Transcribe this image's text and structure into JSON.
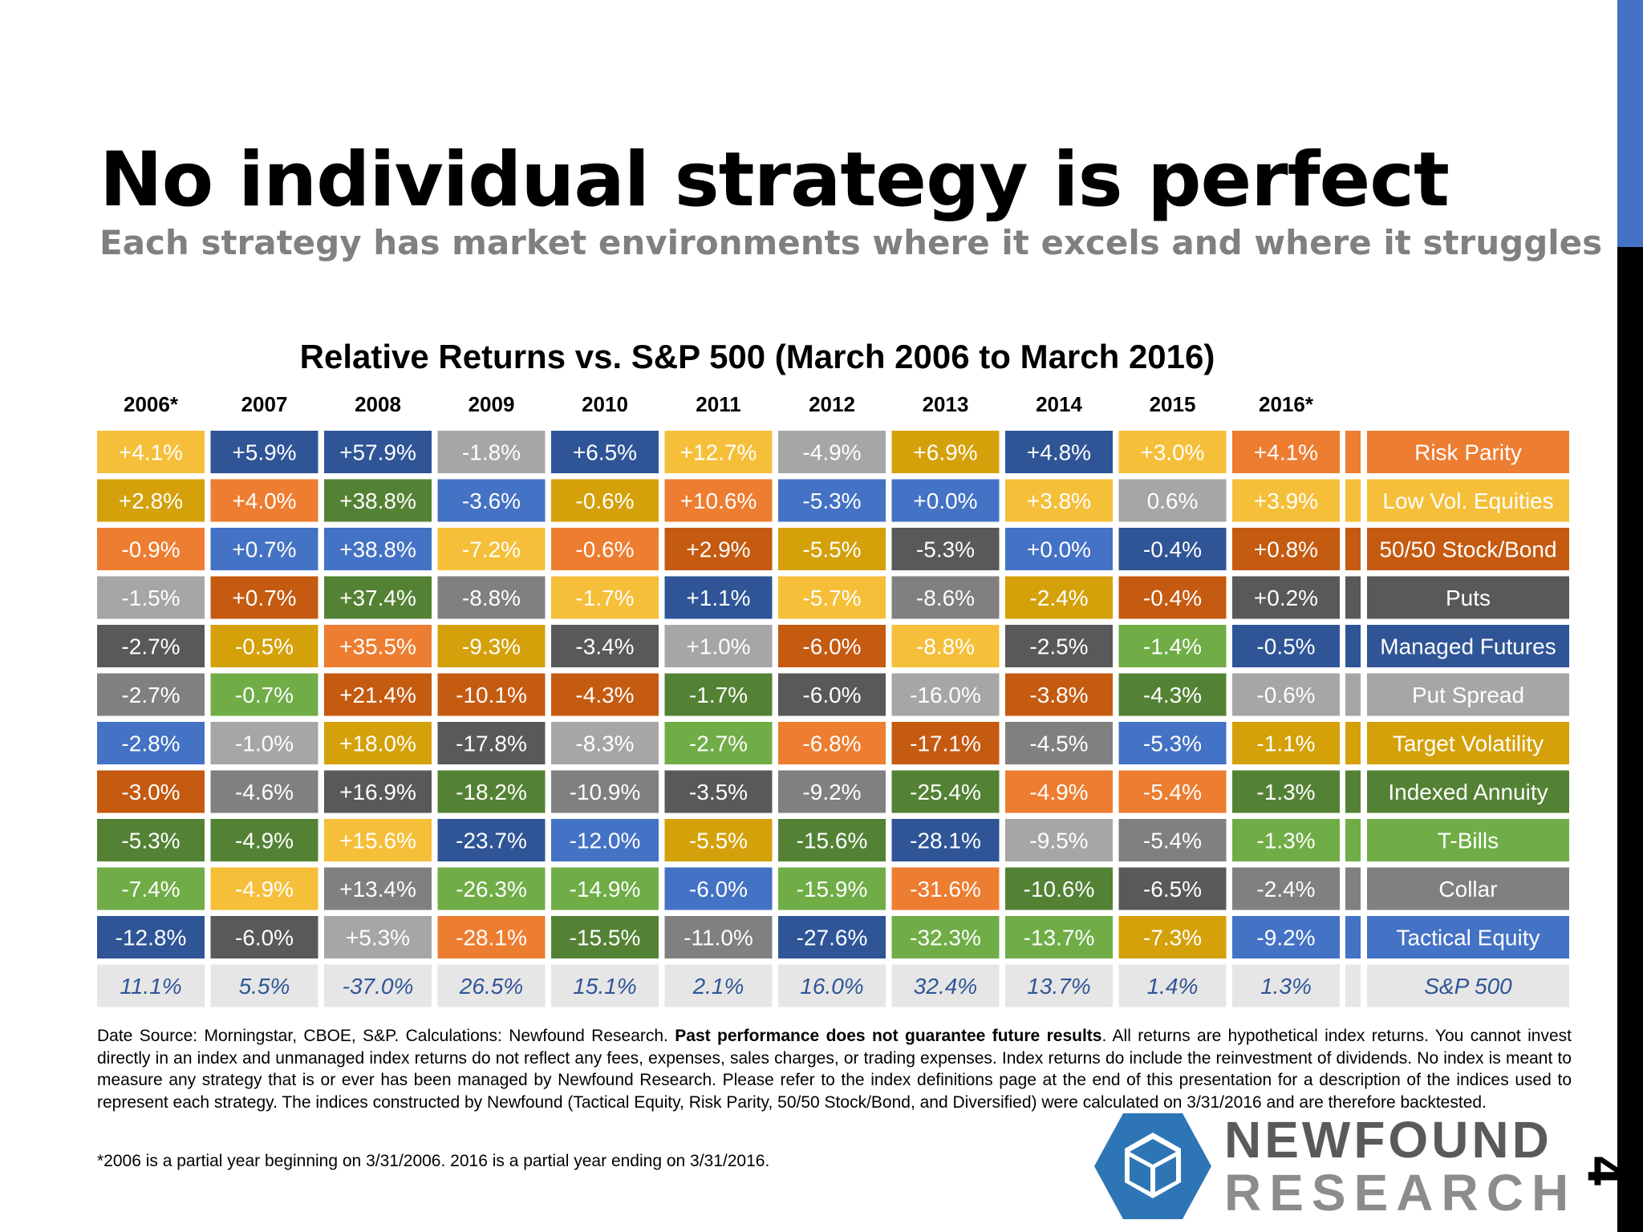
{
  "title": "No individual strategy is perfect",
  "subtitle": "Each strategy has market environments where it excels and where it struggles",
  "page_number": "4",
  "footnote": {
    "part1": "Date Source: Morningstar, CBOE, S&P. Calculations: Newfound Research. ",
    "bold": "Past performance does not guarantee future results",
    "part2": ". All returns are hypothetical index returns. You cannot invest directly in an index and unmanaged index returns do not reflect any fees, expenses, sales charges, or trading expenses.  Index returns do include the reinvestment of dividends. No index is meant to measure any strategy that is or ever has been managed by Newfound Research. Please refer to the index definitions page at the end of this presentation for a description of the indices used to represent each strategy. The indices constructed by Newfound (Tactical Equity, Risk Parity, 50/50 Stock/Bond, and Diversified) were calculated on 3/31/2016 and are therefore backtested.",
    "partial_year_note": "*2006 is a partial year beginning on 3/31/2006. 2016 is a partial year ending on 3/31/2016."
  },
  "logo": {
    "line1": "NEWFOUND",
    "line2": "RESEARCH"
  },
  "colors": {
    "Risk Parity": "#ed7d31",
    "Low Vol. Equities": "#f5bf3a",
    "50/50 Stock/Bond": "#c55a11",
    "Puts": "#595959",
    "Managed Futures": "#2f5597",
    "Put Spread": "#a6a6a6",
    "Target Volatility": "#d4a10a",
    "Indexed Annuity": "#548235",
    "T-Bills": "#70ad47",
    "Collar": "#808080",
    "Tactical Equity": "#4472c4",
    "S&P 500": "#e6e6e6",
    "sp500_text": "#2f5597"
  },
  "chart_data": {
    "type": "table",
    "title": "Relative Returns vs. S&P 500 (March 2006 to March 2016)",
    "years": [
      "2006*",
      "2007",
      "2008",
      "2009",
      "2010",
      "2011",
      "2012",
      "2013",
      "2014",
      "2015",
      "2016*"
    ],
    "legend": [
      "Risk Parity",
      "Low Vol. Equities",
      "50/50 Stock/Bond",
      "Puts",
      "Managed Futures",
      "Put Spread",
      "Target Volatility",
      "Indexed Annuity",
      "T-Bills",
      "Collar",
      "Tactical Equity"
    ],
    "columns": [
      [
        [
          "Low Vol. Equities",
          "+4.1%"
        ],
        [
          "Target Volatility",
          "+2.8%"
        ],
        [
          "Risk Parity",
          "-0.9%"
        ],
        [
          "Put Spread",
          "-1.5%"
        ],
        [
          "Puts",
          "-2.7%"
        ],
        [
          "Collar",
          "-2.7%"
        ],
        [
          "Tactical Equity",
          "-2.8%"
        ],
        [
          "50/50 Stock/Bond",
          "-3.0%"
        ],
        [
          "Indexed Annuity",
          "-5.3%"
        ],
        [
          "T-Bills",
          "-7.4%"
        ],
        [
          "Managed Futures",
          "-12.8%"
        ]
      ],
      [
        [
          "Managed Futures",
          "+5.9%"
        ],
        [
          "Risk Parity",
          "+4.0%"
        ],
        [
          "Tactical Equity",
          "+0.7%"
        ],
        [
          "50/50 Stock/Bond",
          "+0.7%"
        ],
        [
          "Target Volatility",
          "-0.5%"
        ],
        [
          "T-Bills",
          "-0.7%"
        ],
        [
          "Put Spread",
          "-1.0%"
        ],
        [
          "Collar",
          "-4.6%"
        ],
        [
          "Indexed Annuity",
          "-4.9%"
        ],
        [
          "Low Vol. Equities",
          "-4.9%"
        ],
        [
          "Puts",
          "-6.0%"
        ]
      ],
      [
        [
          "Managed Futures",
          "+57.9%"
        ],
        [
          "Indexed Annuity",
          "+38.8%"
        ],
        [
          "Tactical Equity",
          "+38.8%"
        ],
        [
          "Indexed Annuity",
          "+37.4%"
        ],
        [
          "Risk Parity",
          "+35.5%"
        ],
        [
          "50/50 Stock/Bond",
          "+21.4%"
        ],
        [
          "Target Volatility",
          "+18.0%"
        ],
        [
          "Puts",
          "+16.9%"
        ],
        [
          "Low Vol. Equities",
          "+15.6%"
        ],
        [
          "Collar",
          "+13.4%"
        ],
        [
          "Put Spread",
          "+5.3%"
        ]
      ],
      [
        [
          "Put Spread",
          "-1.8%"
        ],
        [
          "Tactical Equity",
          "-3.6%"
        ],
        [
          "Low Vol. Equities",
          "-7.2%"
        ],
        [
          "Collar",
          "-8.8%"
        ],
        [
          "Target Volatility",
          "-9.3%"
        ],
        [
          "50/50 Stock/Bond",
          "-10.1%"
        ],
        [
          "Puts",
          "-17.8%"
        ],
        [
          "Indexed Annuity",
          "-18.2%"
        ],
        [
          "Managed Futures",
          "-23.7%"
        ],
        [
          "T-Bills",
          "-26.3%"
        ],
        [
          "Risk Parity",
          "-28.1%"
        ]
      ],
      [
        [
          "Managed Futures",
          "+6.5%"
        ],
        [
          "Target Volatility",
          "-0.6%"
        ],
        [
          "Risk Parity",
          "-0.6%"
        ],
        [
          "Low Vol. Equities",
          "-1.7%"
        ],
        [
          "Puts",
          "-3.4%"
        ],
        [
          "50/50 Stock/Bond",
          "-4.3%"
        ],
        [
          "Put Spread",
          "-8.3%"
        ],
        [
          "Collar",
          "-10.9%"
        ],
        [
          "Tactical Equity",
          "-12.0%"
        ],
        [
          "T-Bills",
          "-14.9%"
        ],
        [
          "Indexed Annuity",
          "-15.5%"
        ]
      ],
      [
        [
          "Low Vol. Equities",
          "+12.7%"
        ],
        [
          "Risk Parity",
          "+10.6%"
        ],
        [
          "50/50 Stock/Bond",
          "+2.9%"
        ],
        [
          "Managed Futures",
          "+1.1%"
        ],
        [
          "Put Spread",
          "+1.0%"
        ],
        [
          "Indexed Annuity",
          "-1.7%"
        ],
        [
          "T-Bills",
          "-2.7%"
        ],
        [
          "Puts",
          "-3.5%"
        ],
        [
          "Target Volatility",
          "-5.5%"
        ],
        [
          "Tactical Equity",
          "-6.0%"
        ],
        [
          "Collar",
          "-11.0%"
        ]
      ],
      [
        [
          "Put Spread",
          "-4.9%"
        ],
        [
          "Tactical Equity",
          "-5.3%"
        ],
        [
          "Target Volatility",
          "-5.5%"
        ],
        [
          "Low Vol. Equities",
          "-5.7%"
        ],
        [
          "50/50 Stock/Bond",
          "-6.0%"
        ],
        [
          "Puts",
          "-6.0%"
        ],
        [
          "Risk Parity",
          "-6.8%"
        ],
        [
          "Collar",
          "-9.2%"
        ],
        [
          "Indexed Annuity",
          "-15.6%"
        ],
        [
          "T-Bills",
          "-15.9%"
        ],
        [
          "Managed Futures",
          "-27.6%"
        ]
      ],
      [
        [
          "Target Volatility",
          "+6.9%"
        ],
        [
          "Tactical Equity",
          "+0.0%"
        ],
        [
          "Puts",
          "-5.3%"
        ],
        [
          "Collar",
          "-8.6%"
        ],
        [
          "Low Vol. Equities",
          "-8.8%"
        ],
        [
          "Put Spread",
          "-16.0%"
        ],
        [
          "50/50 Stock/Bond",
          "-17.1%"
        ],
        [
          "Indexed Annuity",
          "-25.4%"
        ],
        [
          "Managed Futures",
          "-28.1%"
        ],
        [
          "Risk Parity",
          "-31.6%"
        ],
        [
          "T-Bills",
          "-32.3%"
        ]
      ],
      [
        [
          "Managed Futures",
          "+4.8%"
        ],
        [
          "Low Vol. Equities",
          "+3.8%"
        ],
        [
          "Tactical Equity",
          "+0.0%"
        ],
        [
          "Target Volatility",
          "-2.4%"
        ],
        [
          "Puts",
          "-2.5%"
        ],
        [
          "50/50 Stock/Bond",
          "-3.8%"
        ],
        [
          "Collar",
          "-4.5%"
        ],
        [
          "Risk Parity",
          "-4.9%"
        ],
        [
          "Put Spread",
          "-9.5%"
        ],
        [
          "Indexed Annuity",
          "-10.6%"
        ],
        [
          "T-Bills",
          "-13.7%"
        ]
      ],
      [
        [
          "Low Vol. Equities",
          "+3.0%"
        ],
        [
          "Put Spread",
          "0.6%"
        ],
        [
          "Managed Futures",
          "-0.4%"
        ],
        [
          "50/50 Stock/Bond",
          "-0.4%"
        ],
        [
          "T-Bills",
          "-1.4%"
        ],
        [
          "Indexed Annuity",
          "-4.3%"
        ],
        [
          "Tactical Equity",
          "-5.3%"
        ],
        [
          "Risk Parity",
          "-5.4%"
        ],
        [
          "Collar",
          "-5.4%"
        ],
        [
          "Puts",
          "-6.5%"
        ],
        [
          "Target Volatility",
          "-7.3%"
        ]
      ],
      [
        [
          "Risk Parity",
          "+4.1%"
        ],
        [
          "Low Vol. Equities",
          "+3.9%"
        ],
        [
          "50/50 Stock/Bond",
          "+0.8%"
        ],
        [
          "Puts",
          "+0.2%"
        ],
        [
          "Managed Futures",
          "-0.5%"
        ],
        [
          "Put Spread",
          "-0.6%"
        ],
        [
          "Target Volatility",
          "-1.1%"
        ],
        [
          "Indexed Annuity",
          "-1.3%"
        ],
        [
          "T-Bills",
          "-1.3%"
        ],
        [
          "Collar",
          "-2.4%"
        ],
        [
          "Tactical Equity",
          "-9.2%"
        ]
      ]
    ],
    "sp500": {
      "label": "S&P 500",
      "values": [
        "11.1%",
        "5.5%",
        "-37.0%",
        "26.5%",
        "15.1%",
        "2.1%",
        "16.0%",
        "32.4%",
        "13.7%",
        "1.4%",
        "1.3%"
      ]
    }
  }
}
